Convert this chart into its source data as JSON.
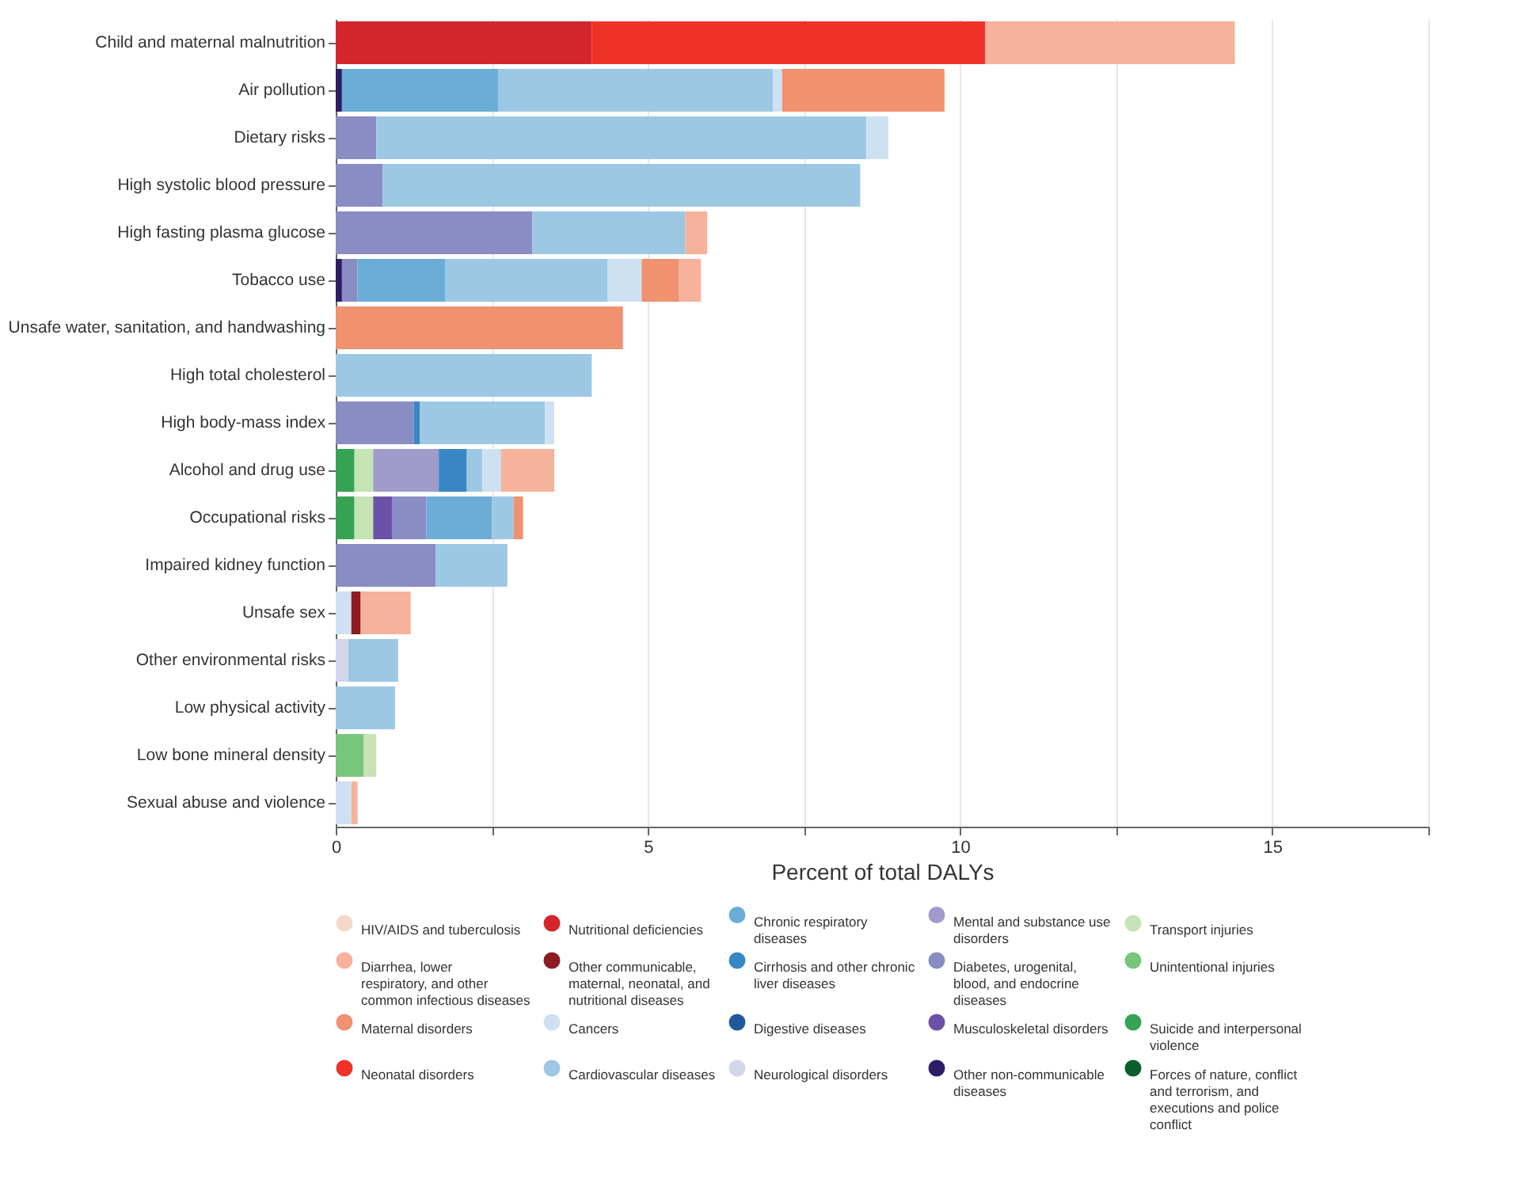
{
  "chart_data": {
    "type": "bar",
    "orientation": "horizontal",
    "stacked": true,
    "xlabel": "Percent of total DALYs",
    "categories": [
      "Child and maternal malnutrition",
      "Air pollution",
      "Dietary risks",
      "High systolic blood pressure",
      "High fasting plasma glucose",
      "Tobacco use",
      "Unsafe water, sanitation, and handwashing",
      "High total cholesterol",
      "High body-mass index",
      "Alcohol and drug use",
      "Occupational risks",
      "Impaired kidney function",
      "Unsafe sex",
      "Other environmental risks",
      "Low physical activity",
      "Low bone mineral density",
      "Sexual abuse and violence"
    ],
    "xlim": [
      0,
      17.5
    ],
    "xticks": [
      0,
      {
        "value": 2.5,
        "label": null
      },
      5,
      {
        "value": 7.5,
        "label": null
      },
      10,
      {
        "value": 12.5,
        "label": null
      },
      15,
      {
        "value": 17.5,
        "label": null
      }
    ],
    "grid": "x",
    "legend": "bottom",
    "series": [
      {
        "name": "Forces of nature, conflict and terrorism, and executions and police conflict",
        "color": "#0a5e2e",
        "values": [
          null,
          null,
          null,
          null,
          null,
          null,
          null,
          null,
          null,
          null,
          null,
          null,
          null,
          null,
          null,
          null,
          null
        ]
      },
      {
        "name": "Suicide and interpersonal violence",
        "color": "#35a353",
        "values": [
          null,
          null,
          null,
          null,
          null,
          null,
          null,
          null,
          null,
          0.3,
          0.3,
          null,
          null,
          null,
          null,
          null,
          null
        ]
      },
      {
        "name": "Unintentional injuries",
        "color": "#78c57c",
        "values": [
          null,
          null,
          null,
          null,
          null,
          null,
          null,
          null,
          null,
          null,
          null,
          null,
          null,
          null,
          null,
          0.45,
          null
        ]
      },
      {
        "name": "Transport injuries",
        "color": "#c5e3b5",
        "values": [
          null,
          null,
          null,
          null,
          null,
          null,
          null,
          null,
          null,
          0.3,
          0.3,
          null,
          null,
          null,
          null,
          0.2,
          null
        ]
      },
      {
        "name": "Other non-communicable diseases",
        "color": "#2c1d66",
        "values": [
          null,
          0.1,
          null,
          null,
          null,
          0.1,
          null,
          null,
          null,
          null,
          null,
          null,
          null,
          null,
          null,
          null,
          null
        ]
      },
      {
        "name": "Musculoskeletal disorders",
        "color": "#6b52a6",
        "values": [
          null,
          null,
          null,
          null,
          null,
          null,
          null,
          null,
          null,
          null,
          0.3,
          null,
          null,
          null,
          null,
          null,
          null
        ]
      },
      {
        "name": "Diabetes, urogenital, blood, and endocrine diseases",
        "color": "#8a8cc4",
        "values": [
          null,
          null,
          0.65,
          0.75,
          3.15,
          0.25,
          null,
          null,
          1.25,
          null,
          0.55,
          1.6,
          null,
          null,
          null,
          null,
          null
        ]
      },
      {
        "name": "Mental and substance use disorders",
        "color": "#9f9ccb",
        "values": [
          null,
          null,
          null,
          null,
          null,
          null,
          null,
          null,
          null,
          1.05,
          null,
          null,
          null,
          null,
          null,
          null,
          null
        ]
      },
      {
        "name": "Neurological disorders",
        "color": "#d3d6ea",
        "values": [
          null,
          null,
          null,
          null,
          null,
          null,
          null,
          null,
          null,
          null,
          null,
          null,
          null,
          0.2,
          null,
          null,
          null
        ]
      },
      {
        "name": "Digestive diseases",
        "color": "#21599f",
        "values": [
          null,
          null,
          null,
          null,
          null,
          null,
          null,
          null,
          null,
          null,
          null,
          null,
          null,
          null,
          null,
          null,
          null
        ]
      },
      {
        "name": "Cirrhosis and other chronic liver diseases",
        "color": "#3887c4",
        "values": [
          null,
          null,
          null,
          null,
          null,
          null,
          null,
          null,
          0.1,
          0.45,
          null,
          null,
          null,
          null,
          null,
          null,
          null
        ]
      },
      {
        "name": "Chronic respiratory diseases",
        "color": "#6cadd8",
        "values": [
          null,
          2.5,
          null,
          null,
          null,
          1.4,
          null,
          null,
          null,
          null,
          1.05,
          null,
          null,
          null,
          null,
          null,
          null
        ]
      },
      {
        "name": "Cardiovascular diseases",
        "color": "#9dc8e4",
        "values": [
          null,
          4.4,
          7.85,
          7.65,
          2.45,
          2.6,
          null,
          4.1,
          2.0,
          0.25,
          0.35,
          1.15,
          null,
          0.8,
          0.95,
          null,
          null
        ]
      },
      {
        "name": "Cancers",
        "color": "#cee1f2",
        "values": [
          null,
          0.15,
          0.35,
          null,
          null,
          0.55,
          null,
          null,
          0.15,
          0.3,
          null,
          null,
          0.25,
          null,
          null,
          null,
          0.25
        ]
      },
      {
        "name": "Other communicable, maternal, neonatal, and nutritional diseases",
        "color": "#8c1c22",
        "values": [
          null,
          null,
          null,
          null,
          null,
          null,
          null,
          null,
          null,
          null,
          null,
          null,
          0.15,
          null,
          null,
          null,
          null
        ]
      },
      {
        "name": "Nutritional deficiencies",
        "color": "#d3262b",
        "values": [
          4.1,
          null,
          null,
          null,
          null,
          null,
          null,
          null,
          null,
          null,
          null,
          null,
          null,
          null,
          null,
          null,
          null
        ]
      },
      {
        "name": "Neonatal disorders",
        "color": "#ee3228",
        "values": [
          6.3,
          null,
          null,
          null,
          null,
          null,
          null,
          null,
          null,
          null,
          null,
          null,
          null,
          null,
          null,
          null,
          null
        ]
      },
      {
        "name": "Maternal disorders",
        "color": "#f0916f",
        "values": [
          null,
          2.6,
          null,
          null,
          null,
          0.6,
          4.6,
          null,
          null,
          null,
          0.15,
          null,
          null,
          null,
          null,
          null,
          null
        ]
      },
      {
        "name": "Diarrhea, lower respiratory, and other common infectious diseases",
        "color": "#f6b29a",
        "values": [
          4.0,
          null,
          null,
          null,
          0.35,
          0.35,
          null,
          null,
          null,
          0.85,
          null,
          null,
          0.8,
          null,
          null,
          null,
          0.1
        ]
      },
      {
        "name": "HIV/AIDS and tuberculosis",
        "color": "#f5d8cb",
        "values": [
          null,
          null,
          null,
          null,
          null,
          null,
          null,
          null,
          null,
          null,
          null,
          null,
          null,
          null,
          null,
          null,
          null
        ]
      }
    ]
  }
}
